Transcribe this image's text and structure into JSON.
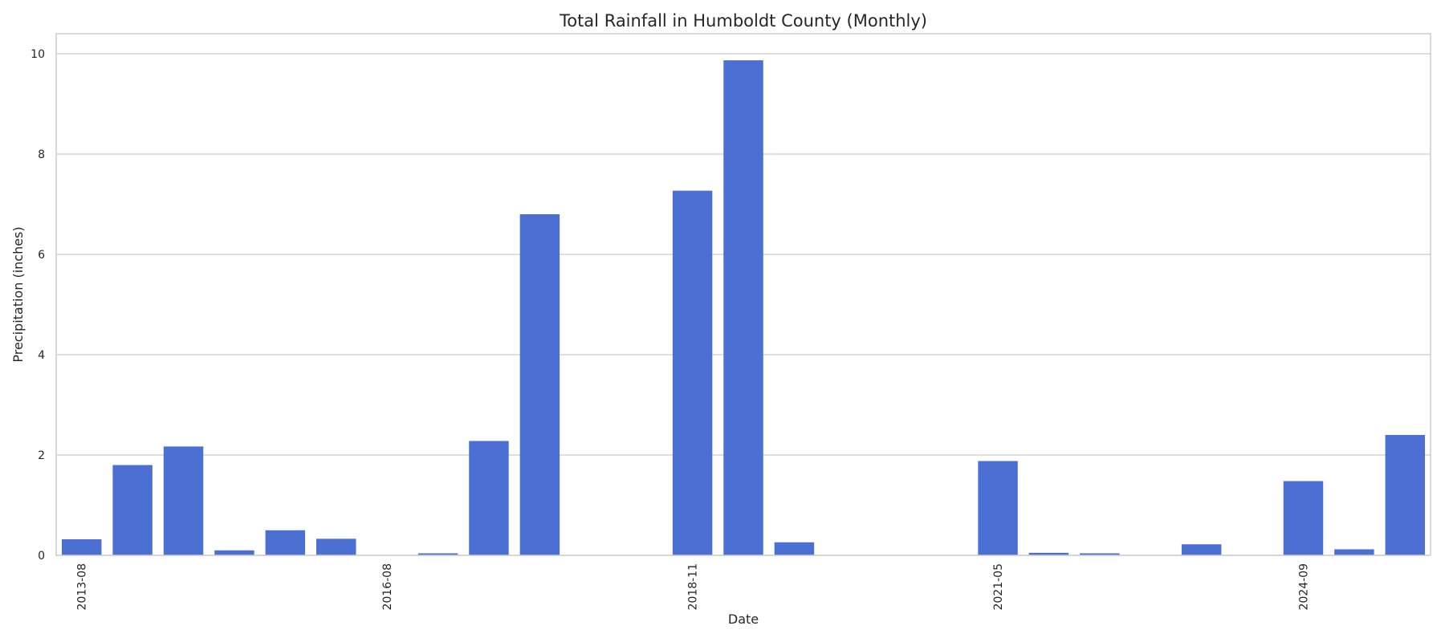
{
  "chart_data": {
    "type": "bar",
    "title": "Total Rainfall in Humboldt County (Monthly)",
    "xlabel": "Date",
    "ylabel": "Precipitation (inches)",
    "categories": [
      "2013-08",
      "",
      "",
      "",
      "",
      "",
      "2016-08",
      "",
      "",
      "",
      "",
      "",
      "2018-11",
      "",
      "",
      "",
      "",
      "",
      "2021-05",
      "",
      "",
      "",
      "",
      "",
      "2024-09",
      "",
      ""
    ],
    "values": [
      0.32,
      1.8,
      2.17,
      0.1,
      0.5,
      0.33,
      0.0,
      0.04,
      2.28,
      6.8,
      0.0,
      0.0,
      7.27,
      9.87,
      0.26,
      0.0,
      0.0,
      0.0,
      1.88,
      0.05,
      0.04,
      0.0,
      0.22,
      0.0,
      1.48,
      0.12,
      2.4
    ],
    "ylim": [
      0,
      10.4
    ],
    "yticks": [
      0,
      2,
      4,
      6,
      8,
      10
    ],
    "grid": true,
    "bar_color": "#4b6fd3"
  }
}
